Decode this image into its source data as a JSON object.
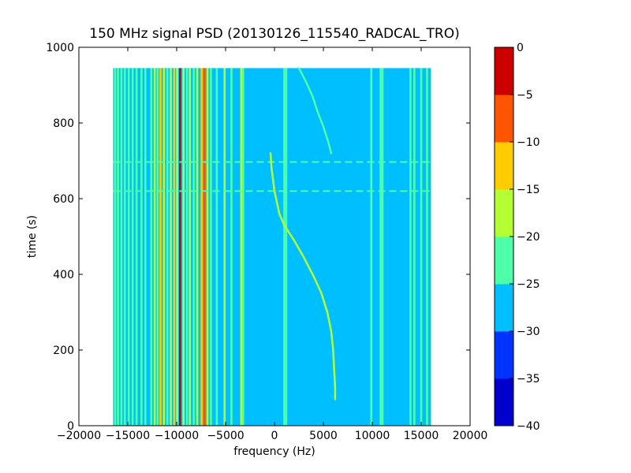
{
  "chart_data": {
    "type": "heatmap",
    "title": "150 MHz signal PSD (20130126_115540_RADCAL_TRO)",
    "xlabel": "frequency (Hz)",
    "ylabel": "time (s)",
    "xlim": [
      -20000,
      20000
    ],
    "ylim": [
      0,
      1000
    ],
    "x_ticks": [
      {
        "value": -20000,
        "label": "−20000"
      },
      {
        "value": -15000,
        "label": "−15000"
      },
      {
        "value": -10000,
        "label": "−10000"
      },
      {
        "value": -5000,
        "label": "−5000"
      },
      {
        "value": 0,
        "label": "0"
      },
      {
        "value": 5000,
        "label": "5000"
      },
      {
        "value": 10000,
        "label": "10000"
      },
      {
        "value": 15000,
        "label": "15000"
      },
      {
        "value": 20000,
        "label": "20000"
      }
    ],
    "y_ticks": [
      {
        "value": 0,
        "label": "0"
      },
      {
        "value": 200,
        "label": "200"
      },
      {
        "value": 400,
        "label": "400"
      },
      {
        "value": 600,
        "label": "600"
      },
      {
        "value": 800,
        "label": "800"
      },
      {
        "value": 1000,
        "label": "1000"
      }
    ],
    "data_extent": {
      "x": [
        -16500,
        16000
      ],
      "y": [
        0,
        945
      ]
    },
    "background_level": -27.5,
    "colorbar": {
      "levels": [
        -40,
        -35,
        -30,
        -25,
        -20,
        -15,
        -10,
        -5,
        0
      ],
      "labels": [
        "−40",
        "−35",
        "−30",
        "−25",
        "−20",
        "−15",
        "−10",
        "−5",
        "0"
      ],
      "colors": [
        "#0000cd",
        "#0033ff",
        "#00bfff",
        "#4dffa6",
        "#b3ff33",
        "#ffcc00",
        "#ff5500",
        "#cd0000"
      ]
    },
    "vertical_lines": [
      {
        "f": -16300,
        "level": -22.5
      },
      {
        "f": -16000,
        "level": -22.5
      },
      {
        "f": -15650,
        "level": -22.5
      },
      {
        "f": -15300,
        "level": -22.5
      },
      {
        "f": -14900,
        "level": -22.5
      },
      {
        "f": -14500,
        "level": -22.5
      },
      {
        "f": -14100,
        "level": -22.5
      },
      {
        "f": -13600,
        "level": -22.5
      },
      {
        "f": -13200,
        "level": -22.5
      },
      {
        "f": -12600,
        "level": -22.5
      },
      {
        "f": -12250,
        "level": -17.5
      },
      {
        "f": -11950,
        "level": -22.5
      },
      {
        "f": -11650,
        "level": -12.5
      },
      {
        "f": -11300,
        "level": -17.5
      },
      {
        "f": -10950,
        "level": -22.5
      },
      {
        "f": -10600,
        "level": -17.5
      },
      {
        "f": -10250,
        "level": -12.5
      },
      {
        "f": -9950,
        "level": -17.5
      },
      {
        "f": -9650,
        "level": -2.5
      },
      {
        "f": -9300,
        "level": -17.5
      },
      {
        "f": -8950,
        "level": -22.5
      },
      {
        "f": -8650,
        "level": -17.5
      },
      {
        "f": -8250,
        "level": -22.5
      },
      {
        "f": -7900,
        "level": -17.5
      },
      {
        "f": -7450,
        "level": -12.5
      },
      {
        "f": -7150,
        "level": -7.5
      },
      {
        "f": -6850,
        "level": -17.5
      },
      {
        "f": -6500,
        "level": -22.5
      },
      {
        "f": -5900,
        "level": -22.5
      },
      {
        "f": -5100,
        "level": -17.5
      },
      {
        "f": -4400,
        "level": -22.5
      },
      {
        "f": -3400,
        "level": -17.5
      },
      {
        "f": -3200,
        "level": -22.5
      },
      {
        "f": 1000,
        "level": -22.5
      },
      {
        "f": 1200,
        "level": -22.5
      },
      {
        "f": 9900,
        "level": -22.5
      },
      {
        "f": 10850,
        "level": -22.5
      },
      {
        "f": 11050,
        "level": -22.5
      },
      {
        "f": 13900,
        "level": -22.5
      },
      {
        "f": 14300,
        "level": -22.5
      },
      {
        "f": 15000,
        "level": -22.5
      },
      {
        "f": 15600,
        "level": -22.5
      }
    ],
    "horizontal_lines": [
      {
        "t": 697,
        "level": -22.5
      },
      {
        "t": 620,
        "level": -22.5
      }
    ],
    "traces": [
      {
        "level": -17.5,
        "points": [
          [
            -400,
            720
          ],
          [
            -300,
            680
          ],
          [
            0,
            620
          ],
          [
            500,
            560
          ],
          [
            1000,
            530
          ],
          [
            2000,
            490
          ],
          [
            3000,
            445
          ],
          [
            4000,
            395
          ],
          [
            4800,
            350
          ],
          [
            5400,
            300
          ],
          [
            5800,
            250
          ],
          [
            6000,
            200
          ],
          [
            6100,
            150
          ],
          [
            6200,
            100
          ],
          [
            6200,
            70
          ]
        ]
      },
      {
        "level": -22.5,
        "points": [
          [
            2500,
            945
          ],
          [
            3200,
            910
          ],
          [
            3900,
            870
          ],
          [
            4400,
            830
          ],
          [
            5000,
            790
          ],
          [
            5500,
            750
          ],
          [
            5800,
            720
          ]
        ]
      }
    ]
  }
}
